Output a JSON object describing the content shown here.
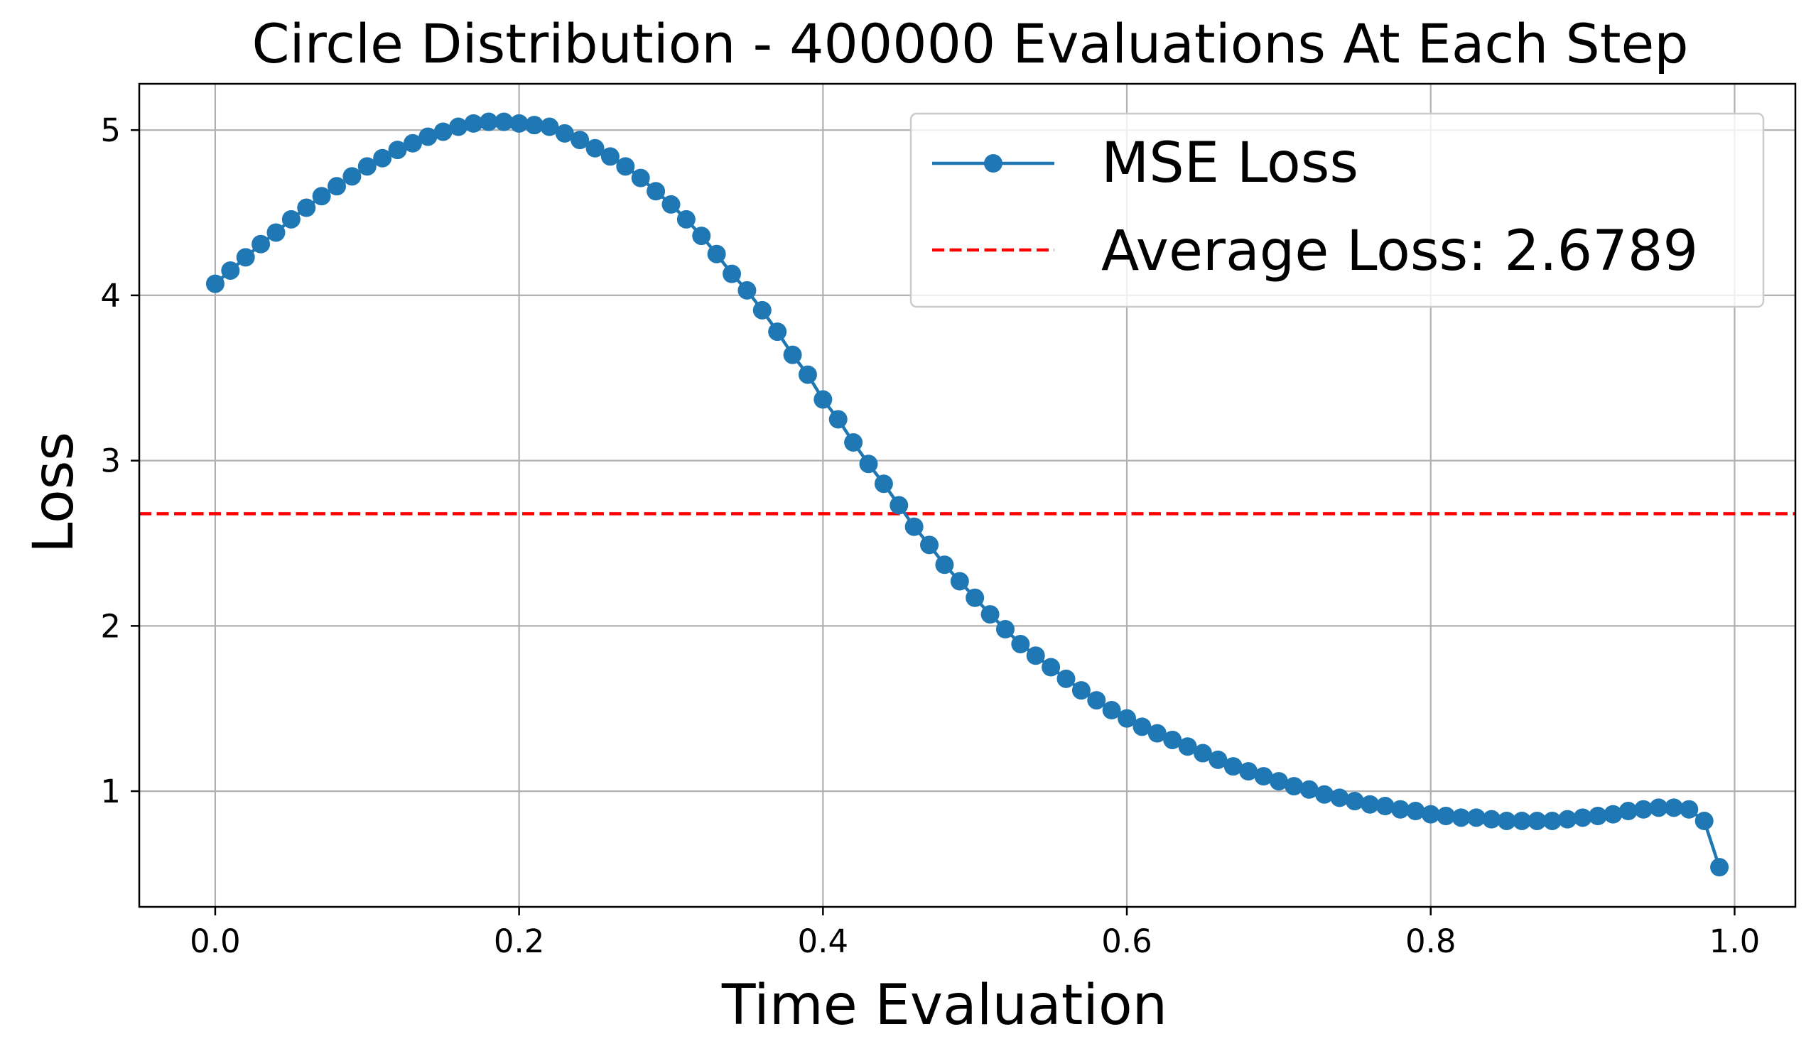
{
  "chart_data": {
    "type": "line",
    "title": "Circle Distribution - 400000 Evaluations At Each Step",
    "xlabel": "Time Evaluation",
    "ylabel": "Loss",
    "xlim": [
      -0.05,
      1.04
    ],
    "ylim": [
      0.3,
      5.28
    ],
    "xticks": [
      {
        "value": 0.0,
        "label": "0.0"
      },
      {
        "value": 0.2,
        "label": "0.2"
      },
      {
        "value": 0.4,
        "label": "0.4"
      },
      {
        "value": 0.6,
        "label": "0.6"
      },
      {
        "value": 0.8,
        "label": "0.8"
      },
      {
        "value": 1.0,
        "label": "1.0"
      }
    ],
    "yticks": [
      {
        "value": 1,
        "label": "1"
      },
      {
        "value": 2,
        "label": "2"
      },
      {
        "value": 3,
        "label": "3"
      },
      {
        "value": 4,
        "label": "4"
      },
      {
        "value": 5,
        "label": "5"
      }
    ],
    "grid": true,
    "legend_position": "top-right",
    "series": [
      {
        "name": "MSE Loss",
        "color": "#1f77b4",
        "marker": "circle",
        "x": [
          0.0,
          0.01,
          0.02,
          0.03,
          0.04,
          0.05,
          0.06,
          0.07,
          0.08,
          0.09,
          0.1,
          0.11,
          0.12,
          0.13,
          0.14,
          0.15,
          0.16,
          0.17,
          0.18,
          0.19,
          0.2,
          0.21,
          0.22,
          0.23,
          0.24,
          0.25,
          0.26,
          0.27,
          0.28,
          0.29,
          0.3,
          0.31,
          0.32,
          0.33,
          0.34,
          0.35,
          0.36,
          0.37,
          0.38,
          0.39,
          0.4,
          0.41,
          0.42,
          0.43,
          0.44,
          0.45,
          0.46,
          0.47,
          0.48,
          0.49,
          0.5,
          0.51,
          0.52,
          0.53,
          0.54,
          0.55,
          0.56,
          0.57,
          0.58,
          0.59,
          0.6,
          0.61,
          0.62,
          0.63,
          0.64,
          0.65,
          0.66,
          0.67,
          0.68,
          0.69,
          0.7,
          0.71,
          0.72,
          0.73,
          0.74,
          0.75,
          0.76,
          0.77,
          0.78,
          0.79,
          0.8,
          0.81,
          0.82,
          0.83,
          0.84,
          0.85,
          0.86,
          0.87,
          0.88,
          0.89,
          0.9,
          0.91,
          0.92,
          0.93,
          0.94,
          0.95,
          0.96,
          0.97,
          0.98,
          0.99
        ],
        "y": [
          4.07,
          4.15,
          4.23,
          4.31,
          4.38,
          4.46,
          4.53,
          4.6,
          4.66,
          4.72,
          4.78,
          4.83,
          4.88,
          4.92,
          4.96,
          4.99,
          5.02,
          5.04,
          5.05,
          5.05,
          5.04,
          5.03,
          5.02,
          4.98,
          4.94,
          4.89,
          4.84,
          4.78,
          4.71,
          4.63,
          4.55,
          4.46,
          4.36,
          4.25,
          4.13,
          4.03,
          3.91,
          3.78,
          3.64,
          3.52,
          3.37,
          3.25,
          3.11,
          2.98,
          2.86,
          2.73,
          2.6,
          2.49,
          2.37,
          2.27,
          2.17,
          2.07,
          1.98,
          1.89,
          1.82,
          1.75,
          1.68,
          1.61,
          1.55,
          1.49,
          1.44,
          1.39,
          1.35,
          1.31,
          1.27,
          1.23,
          1.19,
          1.15,
          1.12,
          1.09,
          1.06,
          1.03,
          1.01,
          0.98,
          0.96,
          0.94,
          0.92,
          0.91,
          0.89,
          0.88,
          0.86,
          0.85,
          0.84,
          0.84,
          0.83,
          0.82,
          0.82,
          0.82,
          0.82,
          0.83,
          0.84,
          0.85,
          0.86,
          0.88,
          0.89,
          0.9,
          0.9,
          0.89,
          0.82,
          0.54
        ]
      }
    ],
    "reference_lines": [
      {
        "name": "Average Loss: 2.6789",
        "y": 2.6789,
        "color": "#ff0000",
        "style": "dashed"
      }
    ]
  }
}
